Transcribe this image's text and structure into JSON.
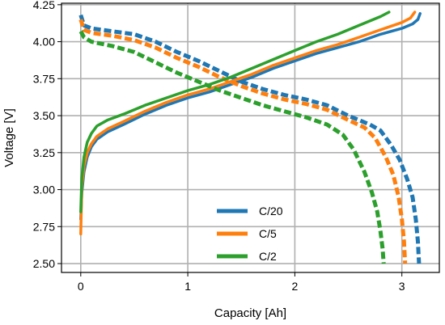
{
  "chart_data": {
    "type": "line",
    "xlabel": "Capacity [Ah]",
    "ylabel": "Voltage [V]",
    "xlim": [
      -0.18,
      3.35
    ],
    "ylim": [
      2.44,
      4.26
    ],
    "xticks": [
      0,
      1,
      2,
      3
    ],
    "xtick_labels": [
      "0",
      "1",
      "2",
      "3"
    ],
    "yticks": [
      2.5,
      2.75,
      3.0,
      3.25,
      3.5,
      3.75,
      4.0,
      4.25
    ],
    "ytick_labels": [
      "2.50",
      "2.75",
      "3.00",
      "3.25",
      "3.50",
      "3.75",
      "4.00",
      "4.25"
    ],
    "grid": true,
    "legend_position": "lower-center",
    "series": [
      {
        "name": "C/20",
        "color": "#1f77b4",
        "charge": {
          "x": [
            0,
            0.01,
            0.03,
            0.06,
            0.1,
            0.15,
            0.25,
            0.4,
            0.6,
            0.8,
            1.0,
            1.2,
            1.4,
            1.6,
            1.8,
            2.0,
            2.2,
            2.4,
            2.6,
            2.8,
            3.0,
            3.1,
            3.15,
            3.17
          ],
          "y": [
            2.8,
            2.98,
            3.12,
            3.22,
            3.29,
            3.34,
            3.39,
            3.44,
            3.51,
            3.57,
            3.62,
            3.66,
            3.71,
            3.76,
            3.82,
            3.87,
            3.92,
            3.96,
            4.0,
            4.05,
            4.09,
            4.12,
            4.15,
            4.19
          ]
        },
        "discharge": {
          "x": [
            0,
            0.03,
            0.1,
            0.3,
            0.5,
            0.7,
            0.9,
            1.1,
            1.3,
            1.5,
            1.7,
            1.9,
            2.1,
            2.3,
            2.5,
            2.7,
            2.8,
            2.9,
            2.98,
            3.05,
            3.1,
            3.13,
            3.15,
            3.16
          ],
          "y": [
            4.18,
            4.11,
            4.09,
            4.07,
            4.05,
            4.0,
            3.93,
            3.87,
            3.8,
            3.73,
            3.68,
            3.64,
            3.61,
            3.57,
            3.5,
            3.44,
            3.4,
            3.3,
            3.2,
            3.07,
            2.95,
            2.8,
            2.65,
            2.5
          ]
        }
      },
      {
        "name": "C/5",
        "color": "#ff7f0e",
        "charge": {
          "x": [
            0,
            0.01,
            0.03,
            0.06,
            0.1,
            0.15,
            0.25,
            0.4,
            0.6,
            0.8,
            1.0,
            1.2,
            1.4,
            1.6,
            1.8,
            2.0,
            2.2,
            2.4,
            2.6,
            2.8,
            3.0,
            3.08,
            3.12
          ],
          "y": [
            2.7,
            3.02,
            3.16,
            3.25,
            3.31,
            3.36,
            3.41,
            3.46,
            3.53,
            3.59,
            3.64,
            3.68,
            3.73,
            3.78,
            3.84,
            3.89,
            3.94,
            3.98,
            4.03,
            4.08,
            4.13,
            4.16,
            4.2
          ]
        },
        "discharge": {
          "x": [
            0,
            0.03,
            0.1,
            0.3,
            0.5,
            0.7,
            0.9,
            1.1,
            1.3,
            1.5,
            1.7,
            1.9,
            2.1,
            2.3,
            2.5,
            2.65,
            2.75,
            2.85,
            2.92,
            2.97,
            3.0,
            3.02,
            3.03
          ],
          "y": [
            4.15,
            4.08,
            4.06,
            4.04,
            4.01,
            3.96,
            3.89,
            3.83,
            3.76,
            3.7,
            3.65,
            3.61,
            3.58,
            3.54,
            3.47,
            3.42,
            3.35,
            3.22,
            3.1,
            2.95,
            2.8,
            2.65,
            2.5
          ]
        }
      },
      {
        "name": "C/2",
        "color": "#2ca02c",
        "charge": {
          "x": [
            0,
            0.01,
            0.03,
            0.06,
            0.1,
            0.15,
            0.25,
            0.4,
            0.6,
            0.8,
            1.0,
            1.2,
            1.4,
            1.6,
            1.8,
            2.0,
            2.2,
            2.4,
            2.6,
            2.8,
            2.88
          ],
          "y": [
            2.85,
            3.08,
            3.22,
            3.32,
            3.38,
            3.43,
            3.47,
            3.51,
            3.57,
            3.62,
            3.67,
            3.71,
            3.76,
            3.82,
            3.88,
            3.94,
            4.0,
            4.05,
            4.11,
            4.17,
            4.2
          ]
        },
        "discharge": {
          "x": [
            0,
            0.03,
            0.1,
            0.3,
            0.5,
            0.7,
            0.9,
            1.1,
            1.3,
            1.5,
            1.7,
            1.9,
            2.1,
            2.3,
            2.45,
            2.55,
            2.65,
            2.72,
            2.77,
            2.8,
            2.82,
            2.83
          ],
          "y": [
            4.07,
            4.03,
            4.0,
            3.97,
            3.93,
            3.86,
            3.79,
            3.73,
            3.67,
            3.62,
            3.57,
            3.53,
            3.49,
            3.44,
            3.37,
            3.27,
            3.12,
            2.98,
            2.85,
            2.72,
            2.6,
            2.5
          ]
        }
      }
    ]
  }
}
